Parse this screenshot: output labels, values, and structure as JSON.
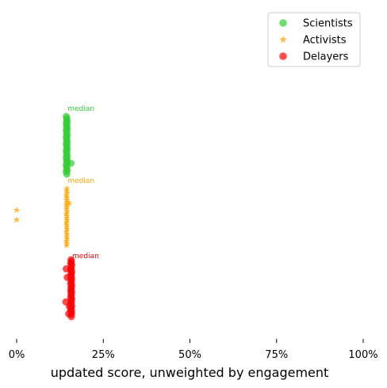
{
  "chart_data": {
    "type": "scatter",
    "xlabel": "updated score, unweighted by engagement",
    "xlim": [
      0,
      1
    ],
    "x_ticks": [
      0,
      0.25,
      0.5,
      0.75,
      1
    ],
    "x_tick_labels": [
      "0%",
      "25%",
      "50%",
      "75%",
      "100%"
    ],
    "grid": false,
    "legend_position": "top-right",
    "median_label": "median",
    "series": [
      {
        "name": "Scientists",
        "marker": "circle",
        "color": "#32cd32",
        "median": 0.145,
        "points": [
          [
            0.143,
            0.0
          ],
          [
            0.145,
            0.03
          ],
          [
            0.144,
            0.06
          ],
          [
            0.146,
            0.09
          ],
          [
            0.143,
            0.12
          ],
          [
            0.145,
            0.15
          ],
          [
            0.144,
            0.18
          ],
          [
            0.146,
            0.21
          ],
          [
            0.143,
            0.24
          ],
          [
            0.145,
            0.27
          ],
          [
            0.144,
            0.3
          ],
          [
            0.146,
            0.33
          ],
          [
            0.143,
            0.36
          ],
          [
            0.145,
            0.39
          ],
          [
            0.144,
            0.42
          ],
          [
            0.146,
            0.45
          ],
          [
            0.143,
            0.48
          ],
          [
            0.145,
            0.51
          ],
          [
            0.144,
            0.54
          ],
          [
            0.146,
            0.57
          ],
          [
            0.143,
            0.6
          ],
          [
            0.145,
            0.63
          ],
          [
            0.144,
            0.66
          ],
          [
            0.146,
            0.69
          ],
          [
            0.143,
            0.72
          ],
          [
            0.145,
            0.75
          ],
          [
            0.144,
            0.78
          ],
          [
            0.146,
            0.81
          ],
          [
            0.143,
            0.84
          ],
          [
            0.145,
            0.87
          ],
          [
            0.144,
            0.9
          ],
          [
            0.146,
            0.93
          ],
          [
            0.143,
            0.96
          ],
          [
            0.145,
            1.0
          ],
          [
            0.157,
            0.81
          ]
        ]
      },
      {
        "name": "Activists",
        "marker": "star",
        "color": "#ffa500",
        "median": 0.145,
        "points": [
          [
            0.145,
            0.0
          ],
          [
            0.144,
            0.04
          ],
          [
            0.146,
            0.08
          ],
          [
            0.143,
            0.12
          ],
          [
            0.145,
            0.16
          ],
          [
            0.144,
            0.2
          ],
          [
            0.146,
            0.24
          ],
          [
            0.143,
            0.28
          ],
          [
            0.145,
            0.32
          ],
          [
            0.144,
            0.36
          ],
          [
            0.146,
            0.4
          ],
          [
            0.143,
            0.44
          ],
          [
            0.145,
            0.48
          ],
          [
            0.144,
            0.52
          ],
          [
            0.146,
            0.56
          ],
          [
            0.143,
            0.6
          ],
          [
            0.145,
            0.64
          ],
          [
            0.144,
            0.68
          ],
          [
            0.146,
            0.72
          ],
          [
            0.143,
            0.76
          ],
          [
            0.145,
            0.8
          ],
          [
            0.144,
            0.84
          ],
          [
            0.146,
            0.88
          ],
          [
            0.143,
            0.92
          ],
          [
            0.145,
            0.96
          ],
          [
            0.144,
            1.0
          ],
          [
            0.152,
            0.26
          ],
          [
            0.0,
            0.38
          ],
          [
            0.0,
            0.55
          ]
        ]
      },
      {
        "name": "Delayers",
        "marker": "circle",
        "color": "#ff0000",
        "median": 0.158,
        "points": [
          [
            0.157,
            0.0
          ],
          [
            0.158,
            0.03
          ],
          [
            0.156,
            0.06
          ],
          [
            0.159,
            0.09
          ],
          [
            0.157,
            0.12
          ],
          [
            0.158,
            0.15
          ],
          [
            0.156,
            0.18
          ],
          [
            0.159,
            0.21
          ],
          [
            0.157,
            0.24
          ],
          [
            0.158,
            0.27
          ],
          [
            0.156,
            0.3
          ],
          [
            0.159,
            0.33
          ],
          [
            0.157,
            0.36
          ],
          [
            0.158,
            0.39
          ],
          [
            0.156,
            0.42
          ],
          [
            0.159,
            0.45
          ],
          [
            0.157,
            0.48
          ],
          [
            0.158,
            0.51
          ],
          [
            0.156,
            0.54
          ],
          [
            0.159,
            0.57
          ],
          [
            0.157,
            0.6
          ],
          [
            0.158,
            0.63
          ],
          [
            0.156,
            0.66
          ],
          [
            0.159,
            0.69
          ],
          [
            0.157,
            0.72
          ],
          [
            0.158,
            0.75
          ],
          [
            0.156,
            0.78
          ],
          [
            0.159,
            0.81
          ],
          [
            0.157,
            0.84
          ],
          [
            0.158,
            0.87
          ],
          [
            0.156,
            0.9
          ],
          [
            0.159,
            0.93
          ],
          [
            0.157,
            0.96
          ],
          [
            0.158,
            1.0
          ],
          [
            0.143,
            0.16
          ],
          [
            0.146,
            0.31
          ],
          [
            0.142,
            0.74
          ],
          [
            0.152,
            0.82
          ],
          [
            0.15,
            0.95
          ]
        ]
      }
    ]
  }
}
